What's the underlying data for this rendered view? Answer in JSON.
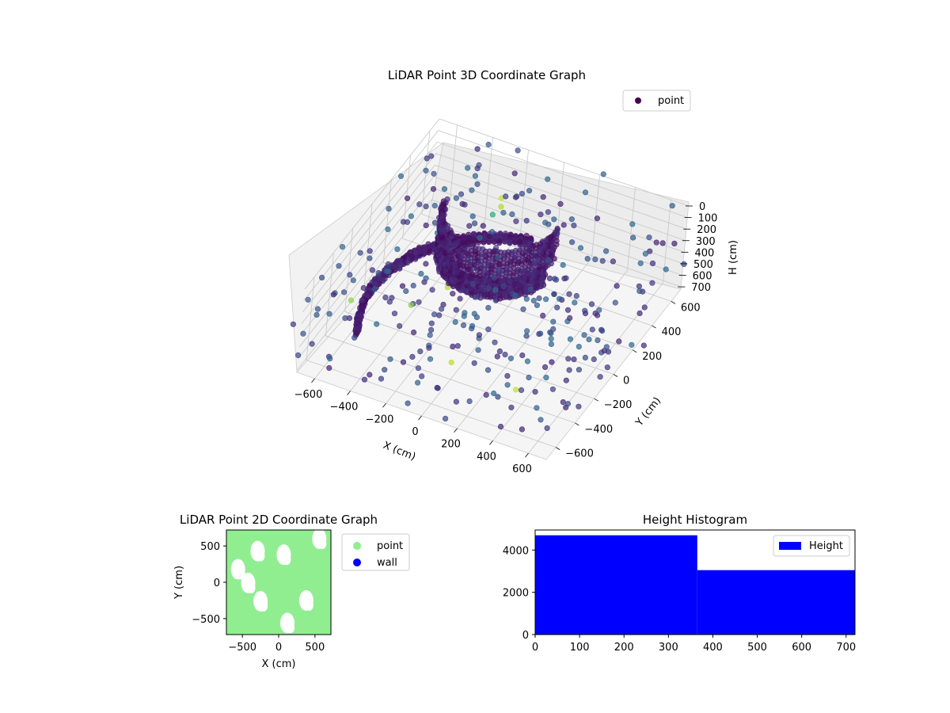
{
  "colors": {
    "point_2d": "#90ee90",
    "wall_2d": "#0000ff",
    "hist_bar": "#0000ff",
    "legend_3d_marker": "#440154"
  },
  "chart_data": [
    {
      "type": "scatter",
      "projection": "3d",
      "title": "LiDAR Point 3D Coordinate Graph",
      "xlabel": "X (cm)",
      "ylabel": "Y (cm)",
      "zlabel": "H (cm)",
      "xlim": [
        -700,
        700
      ],
      "ylim": [
        -700,
        700
      ],
      "zlim": [
        0,
        720
      ],
      "z_inverted": true,
      "x_ticks": [
        "−600",
        "−400",
        "−200",
        "0",
        "200",
        "400",
        "600"
      ],
      "y_ticks": [
        "−600",
        "−400",
        "−200",
        "0",
        "200",
        "400",
        "600"
      ],
      "z_ticks": [
        "0",
        "100",
        "200",
        "300",
        "400",
        "500",
        "600",
        "700"
      ],
      "legend": [
        "point"
      ],
      "legend_position": "top-right",
      "colormap": "viridis",
      "grid": true,
      "structures": [
        {
          "name": "wall arc upper",
          "center": [
            -100,
            250
          ],
          "radius": 300,
          "angle_start": 190,
          "angle_end": 360,
          "z_range": [
            0,
            250
          ]
        },
        {
          "name": "wall arc lower",
          "center": [
            -100,
            250
          ],
          "radius": 300,
          "angle_start": 200,
          "angle_end": 345,
          "z_range": [
            250,
            400
          ]
        },
        {
          "name": "floor ring",
          "center": [
            0,
            0
          ],
          "radius": 650,
          "angle_start": 100,
          "angle_end": 210,
          "z_range": [
            650,
            720
          ]
        }
      ]
    },
    {
      "type": "scatter",
      "title": "LiDAR Point 2D Coordinate Graph",
      "xlabel": "X (cm)",
      "ylabel": "Y (cm)",
      "xlim": [
        -720,
        720
      ],
      "ylim": [
        -720,
        720
      ],
      "x_ticks": [
        "−500",
        "0",
        "500"
      ],
      "y_ticks": [
        "−500",
        "0",
        "500"
      ],
      "legend": [
        "point",
        "wall"
      ],
      "legend_position": "outside-right",
      "gaps": [
        {
          "x": 70,
          "y": 380
        },
        {
          "x": -290,
          "y": 430
        },
        {
          "x": -420,
          "y": -10
        },
        {
          "x": 380,
          "y": -250
        },
        {
          "x": -250,
          "y": -260
        },
        {
          "x": 560,
          "y": 600
        },
        {
          "x": -560,
          "y": 180
        },
        {
          "x": 120,
          "y": -560
        }
      ]
    },
    {
      "type": "bar",
      "title": "Height Histogram",
      "xlim": [
        0,
        720
      ],
      "ylim": [
        0,
        4950
      ],
      "x_ticks": [
        "0",
        "100",
        "200",
        "300",
        "400",
        "500",
        "600",
        "700"
      ],
      "y_ticks": [
        "0",
        "2000",
        "4000"
      ],
      "bins": [
        {
          "start": 0,
          "end": 365,
          "count": 4700
        },
        {
          "start": 365,
          "end": 720,
          "count": 3050
        }
      ],
      "legend": [
        "Height"
      ],
      "legend_position": "top-right"
    }
  ]
}
